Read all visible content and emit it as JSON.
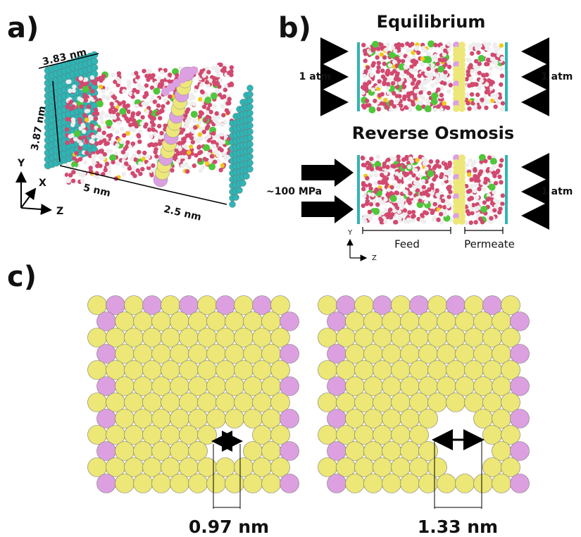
{
  "panel_a": {
    "label": "a)",
    "width": "3.83 nm",
    "height": "3.87 nm",
    "feed_length": "5 nm",
    "permeate_length": "2.5 nm",
    "axis_y": "Y",
    "axis_x": "X",
    "axis_z": "Z"
  },
  "panel_b": {
    "label": "b)",
    "equilibrium": {
      "title": "Equilibrium",
      "left_pressure": "1 atm",
      "right_pressure": "1 atm"
    },
    "reverse_osmosis": {
      "title": "Reverse Osmosis",
      "left_pressure": "~100 MPa",
      "right_pressure": "1 atm"
    },
    "feed": "Feed",
    "permeate": "Permeate",
    "axis_y": "Y",
    "axis_z": "Z"
  },
  "panel_c": {
    "label": "c)",
    "left_pore": "0.97 nm",
    "right_pore": "1.33 nm"
  }
}
